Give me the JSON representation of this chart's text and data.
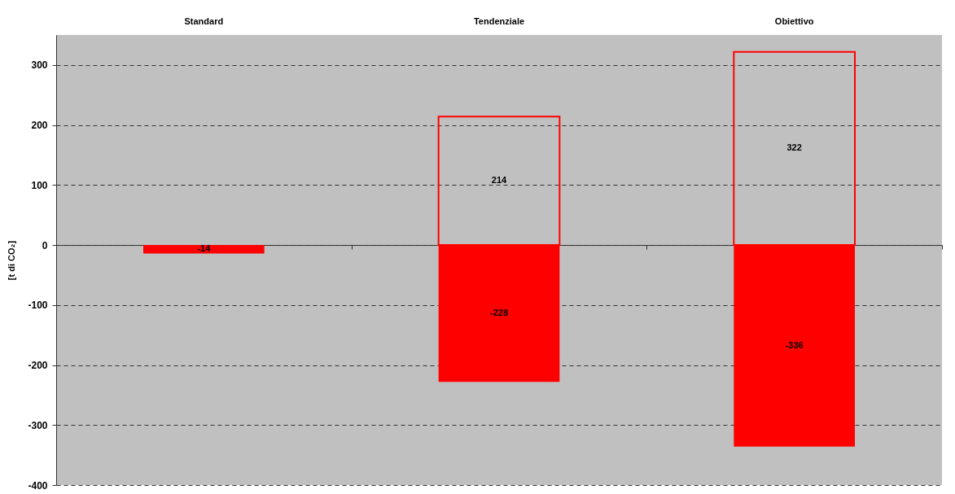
{
  "chart_data": {
    "type": "bar",
    "stacked": true,
    "categories": [
      "Standard",
      "Tendenziale",
      "Obiettivo"
    ],
    "ylabel": "[t di CO₂]",
    "series": [
      {
        "color": "#ff0000",
        "values": [
          -14,
          -228,
          -336
        ]
      },
      {
        "color": "#ff0000",
        "line_style": "solid",
        "values": [
          null,
          214,
          322
        ]
      }
    ],
    "ylim": [
      -400,
      350
    ],
    "yticks": [
      -400,
      -300,
      -200,
      -100,
      0,
      100,
      200,
      300
    ],
    "grid": "y",
    "data_labels": true
  }
}
